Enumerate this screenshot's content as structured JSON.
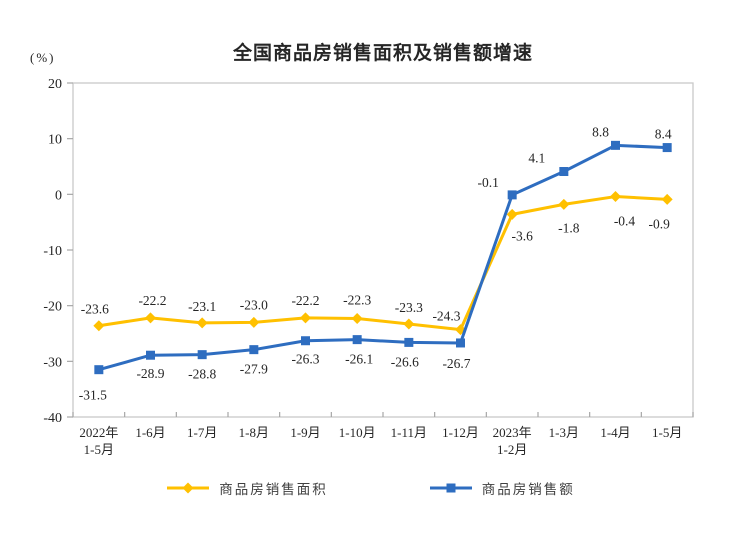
{
  "chart_data": {
    "type": "line",
    "title": "全国商品房销售面积及销售额增速",
    "unit_label": "(%)",
    "ylim": [
      -40,
      20
    ],
    "yticks": [
      20,
      10,
      0,
      -10,
      -20,
      -30,
      -40
    ],
    "grid": false,
    "legend_position": "bottom",
    "axis_color": "#c9c9c9",
    "tick_color": "#a6a6a6",
    "text_color": "#262626",
    "categories": [
      [
        "2022年",
        "1-5月"
      ],
      [
        "1-6月"
      ],
      [
        "1-7月"
      ],
      [
        "1-8月"
      ],
      [
        "1-9月"
      ],
      [
        "1-10月"
      ],
      [
        "1-11月"
      ],
      [
        "1-12月"
      ],
      [
        "2023年",
        "1-2月"
      ],
      [
        "1-3月"
      ],
      [
        "1-4月"
      ],
      [
        "1-5月"
      ]
    ],
    "series": [
      {
        "name": "商品房销售面积",
        "color": "#FFC000",
        "marker": "diamond",
        "values": [
          -23.6,
          -22.2,
          -23.1,
          -23.0,
          -22.2,
          -22.3,
          -23.3,
          -24.3,
          -3.6,
          -1.8,
          -0.4,
          -0.9
        ],
        "label_pos": [
          [
            -4,
            -12
          ],
          [
            2,
            -13
          ],
          [
            0,
            -12
          ],
          [
            0,
            -13
          ],
          [
            0,
            -13
          ],
          [
            0,
            -14
          ],
          [
            0,
            -12
          ],
          [
            -14,
            -9
          ],
          [
            10,
            26
          ],
          [
            5,
            28
          ],
          [
            9,
            29
          ],
          [
            -8,
            29
          ]
        ]
      },
      {
        "name": "商品房销售额",
        "color": "#2E6DC0",
        "marker": "square",
        "values": [
          -31.5,
          -28.9,
          -28.8,
          -27.9,
          -26.3,
          -26.1,
          -26.6,
          -26.7,
          -0.1,
          4.1,
          8.8,
          8.4
        ],
        "label_pos": [
          [
            -6,
            30
          ],
          [
            0,
            23
          ],
          [
            0,
            24
          ],
          [
            0,
            24
          ],
          [
            0,
            23
          ],
          [
            2,
            24
          ],
          [
            -4,
            24
          ],
          [
            -4,
            25
          ],
          [
            -24,
            -8
          ],
          [
            -27,
            -9
          ],
          [
            -15,
            -9
          ],
          [
            -4,
            -9
          ]
        ]
      }
    ]
  }
}
